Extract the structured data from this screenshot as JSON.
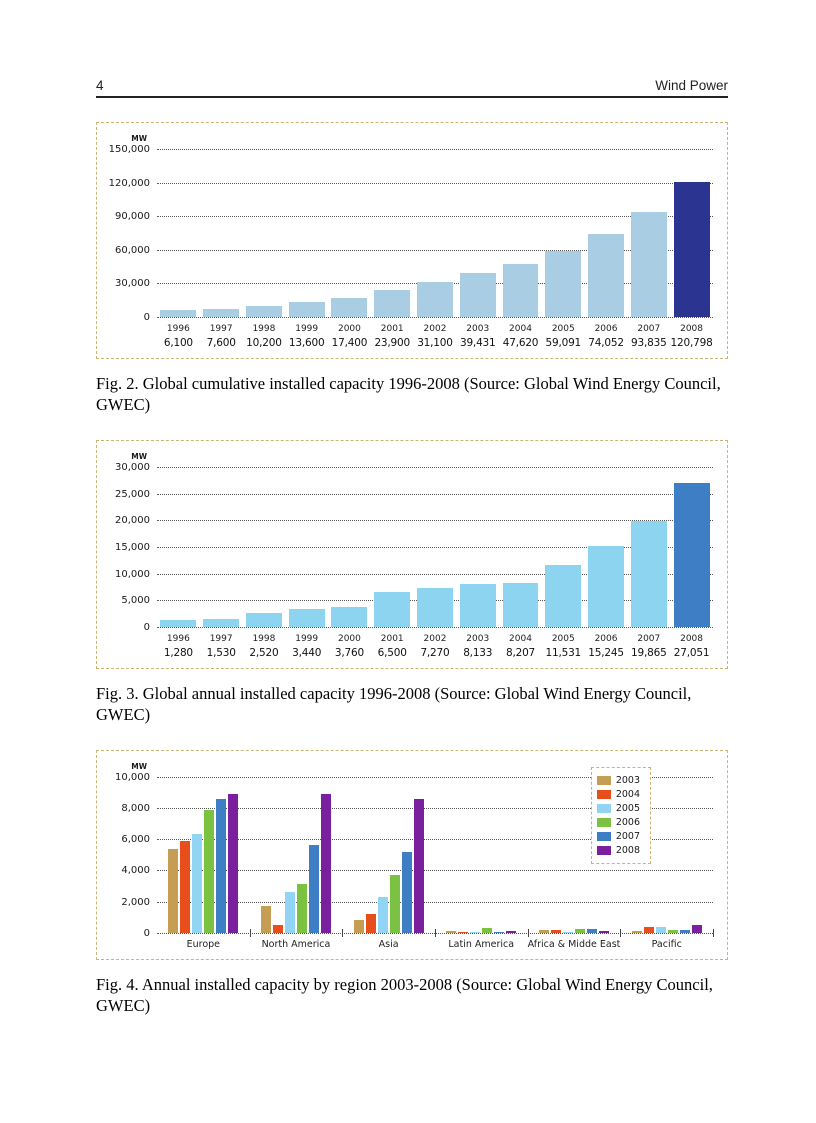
{
  "page": {
    "number": "4",
    "header_title": "Wind Power"
  },
  "captions": {
    "fig2": "Fig. 2. Global cumulative installed capacity 1996-2008 (Source: Global Wind Energy Council, GWEC)",
    "fig3": "Fig. 3. Global annual installed capacity 1996-2008 (Source: Global Wind Energy Council, GWEC)",
    "fig4": "Fig. 4. Annual installed capacity by region 2003-2008 (Source: Global Wind Energy Council, GWEC)"
  },
  "chart_data": [
    {
      "type": "bar",
      "title": "Global cumulative installed capacity 1996-2008",
      "ylabel": "MW",
      "ylim": [
        0,
        150000
      ],
      "grid": true,
      "yticks": [
        150000,
        120000,
        90000,
        60000,
        30000,
        0
      ],
      "ytick_labels": [
        "150,000",
        "120,000",
        "90,000",
        "60,000",
        "30,000",
        "0"
      ],
      "categories": [
        "1996",
        "1997",
        "1998",
        "1999",
        "2000",
        "2001",
        "2002",
        "2003",
        "2004",
        "2005",
        "2006",
        "2007",
        "2008"
      ],
      "values": [
        6100,
        7600,
        10200,
        13600,
        17400,
        23900,
        31100,
        39431,
        47620,
        59091,
        74052,
        93835,
        120798
      ],
      "value_labels": [
        "6,100",
        "7,600",
        "10,200",
        "13,600",
        "17,400",
        "23,900",
        "31,100",
        "39,431",
        "47,620",
        "59,091",
        "74,052",
        "93,835",
        "120,798"
      ],
      "bar_color": "#a9cee4",
      "highlight_index": 12,
      "highlight_color": "#2b3490"
    },
    {
      "type": "bar",
      "title": "Global annual installed capacity 1996-2008",
      "ylabel": "MW",
      "ylim": [
        0,
        30000
      ],
      "grid": true,
      "yticks": [
        30000,
        25000,
        20000,
        15000,
        10000,
        5000,
        0
      ],
      "ytick_labels": [
        "30,000",
        "25,000",
        "20,000",
        "15,000",
        "10,000",
        "5,000",
        "0"
      ],
      "categories": [
        "1996",
        "1997",
        "1998",
        "1999",
        "2000",
        "2001",
        "2002",
        "2003",
        "2004",
        "2005",
        "2006",
        "2007",
        "2008"
      ],
      "values": [
        1280,
        1530,
        2520,
        3440,
        3760,
        6500,
        7270,
        8133,
        8207,
        11531,
        15245,
        19865,
        27051
      ],
      "value_labels": [
        "1,280",
        "1,530",
        "2,520",
        "3,440",
        "3,760",
        "6,500",
        "7,270",
        "8,133",
        "8,207",
        "11,531",
        "15,245",
        "19,865",
        "27,051"
      ],
      "bar_color": "#8dd4f0",
      "highlight_index": 12,
      "highlight_color": "#3d7ec5"
    },
    {
      "type": "bar",
      "title": "Annual installed capacity by region 2003-2008",
      "ylabel": "MW",
      "ylim": [
        0,
        10000
      ],
      "grid": true,
      "legend_position": "top-right",
      "yticks": [
        10000,
        8000,
        6000,
        4000,
        2000,
        0
      ],
      "ytick_labels": [
        "10,000",
        "8,000",
        "6,000",
        "4,000",
        "2,000",
        "0"
      ],
      "categories": [
        "Europe",
        "North America",
        "Asia",
        "Latin America",
        "Africa & Midde East",
        "Pacific"
      ],
      "series": [
        {
          "name": "2003",
          "color": "#c59e54",
          "values": [
            5400,
            1700,
            800,
            100,
            150,
            100
          ]
        },
        {
          "name": "2004",
          "color": "#e84e1b",
          "values": [
            5900,
            500,
            1200,
            50,
            150,
            400
          ]
        },
        {
          "name": "2005",
          "color": "#92d4f4",
          "values": [
            6300,
            2600,
            2300,
            30,
            60,
            350
          ]
        },
        {
          "name": "2006",
          "color": "#7cc242",
          "values": [
            7900,
            3100,
            3700,
            300,
            230,
            150
          ]
        },
        {
          "name": "2007",
          "color": "#3d7ec5",
          "values": [
            8600,
            5600,
            5200,
            30,
            250,
            200
          ]
        },
        {
          "name": "2008",
          "color": "#7a1f9e",
          "values": [
            8900,
            8900,
            8600,
            100,
            120,
            480
          ]
        }
      ]
    }
  ]
}
